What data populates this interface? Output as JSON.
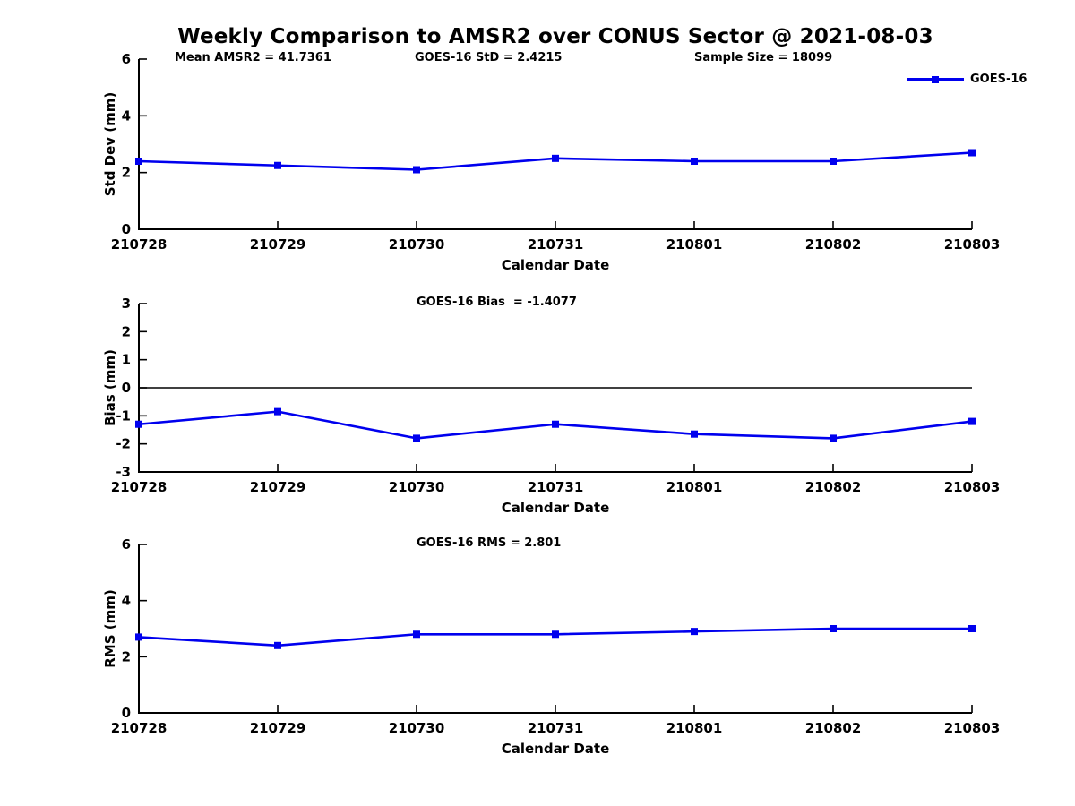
{
  "figure": {
    "title": "Weekly Comparison to AMSR2 over CONUS Sector @ 2021-08-03",
    "accent_color": "#0000EE",
    "legend": {
      "position": "top-right",
      "label": "GOES-16"
    }
  },
  "chart_data": [
    {
      "type": "line",
      "name": "std-dev-subplot",
      "ylabel": "Std Dev (mm)",
      "xlabel": "Calendar Date",
      "categories": [
        "210728",
        "210729",
        "210730",
        "210731",
        "210801",
        "210802",
        "210803"
      ],
      "series": [
        {
          "name": "GOES-16",
          "color": "#0000EE",
          "values": [
            2.4,
            2.25,
            2.1,
            2.5,
            2.4,
            2.4,
            2.7
          ]
        }
      ],
      "ylim": [
        0,
        6
      ],
      "yticks": [
        0,
        2,
        4,
        6
      ],
      "zero_line": false,
      "grid": false,
      "annotations": [
        "Mean AMSR2 = 41.7361",
        "GOES-16 StD = 2.4215",
        "Sample Size = 18099"
      ]
    },
    {
      "type": "line",
      "name": "bias-subplot",
      "ylabel": "Bias (mm)",
      "xlabel": "Calendar Date",
      "categories": [
        "210728",
        "210729",
        "210730",
        "210731",
        "210801",
        "210802",
        "210803"
      ],
      "series": [
        {
          "name": "GOES-16",
          "color": "#0000EE",
          "values": [
            -1.3,
            -0.85,
            -1.8,
            -1.3,
            -1.65,
            -1.8,
            -1.2
          ]
        }
      ],
      "ylim": [
        -3,
        3
      ],
      "yticks": [
        3,
        2,
        1,
        0,
        -1,
        -2,
        -3
      ],
      "zero_line": true,
      "grid": false,
      "annotations": [
        "GOES-16 Bias  = -1.4077"
      ]
    },
    {
      "type": "line",
      "name": "rms-subplot",
      "ylabel": "RMS (mm)",
      "xlabel": "Calendar Date",
      "categories": [
        "210728",
        "210729",
        "210730",
        "210731",
        "210801",
        "210802",
        "210803"
      ],
      "series": [
        {
          "name": "GOES-16",
          "color": "#0000EE",
          "values": [
            2.7,
            2.4,
            2.8,
            2.8,
            2.9,
            3.0,
            3.0
          ]
        }
      ],
      "ylim": [
        0,
        6
      ],
      "yticks": [
        0,
        2,
        4,
        6
      ],
      "zero_line": false,
      "grid": false,
      "annotations": [
        "GOES-16 RMS = 2.801"
      ]
    }
  ]
}
